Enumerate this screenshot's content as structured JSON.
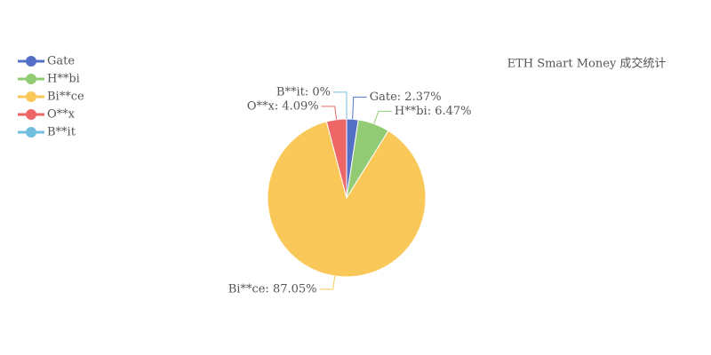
{
  "chart_data": {
    "type": "pie",
    "title": "ETH Smart Money 成交统计",
    "categories": [
      "Gate",
      "H**bi",
      "Bi**ce",
      "O**x",
      "B**it"
    ],
    "values": [
      2.37,
      6.47,
      87.05,
      4.09,
      0
    ],
    "value_labels": [
      "Gate: 2.37%",
      "H**bi: 6.47%",
      "Bi**ce: 87.05%",
      "O**x: 4.09%",
      "B**it: 0%"
    ],
    "colors": [
      "#5470c6",
      "#91cc75",
      "#fac858",
      "#ee6666",
      "#73c0de"
    ],
    "legend": "top-left"
  }
}
